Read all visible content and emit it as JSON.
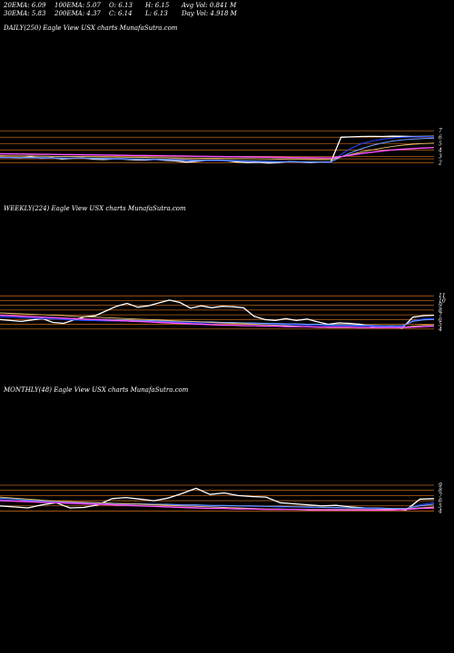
{
  "stats": [
    {
      "label": "20EMA: 6.09"
    },
    {
      "label": "100EMA: 5.07"
    },
    {
      "label": "O: 6.13"
    },
    {
      "label": "H: 6.15"
    },
    {
      "label": "Avg Vol: 0.841  M"
    },
    {
      "label": "30EMA: 5.83"
    },
    {
      "label": "200EMA: 4.37"
    },
    {
      "label": "C: 6.14"
    },
    {
      "label": "L: 6.13"
    },
    {
      "label": "Day Vol: 4.918  M"
    }
  ],
  "panels": [
    {
      "label": "DAILY(250) Eagle   View  USX  charts MunafaSutra.com",
      "ticks": [
        "7",
        "6",
        "5",
        "4",
        "3",
        "2"
      ]
    },
    {
      "label": "WEEKLY(224) Eagle   View  USX  charts MunafaSutra.com",
      "ticks": [
        "11",
        "10",
        "9",
        "8",
        "7",
        "6",
        "5",
        "4"
      ]
    },
    {
      "label": "MONTHLY(48) Eagle   View  USX  charts MunafaSutra.com",
      "ticks": [
        "9",
        "8",
        "7",
        "6",
        "5",
        "4"
      ]
    }
  ],
  "colors": {
    "background": "#000000",
    "price": "#ffffff",
    "ema20": "#2244ff",
    "ema30": "#6fa0ff",
    "ema100": "#e8c070",
    "ema200": "#ff55ff",
    "level_lines": "#b8621a"
  },
  "chart_data": [
    {
      "type": "line",
      "title": "DAILY(250) Eagle   View  USX  charts MunafaSutra.com",
      "ylim": [
        1.2,
        7.6
      ],
      "y_ticks": [
        7,
        6,
        5,
        4,
        3,
        2
      ],
      "series": [
        {
          "name": "price",
          "values": [
            2.85,
            2.8,
            2.75,
            2.9,
            2.7,
            2.8,
            2.6,
            2.7,
            2.75,
            2.55,
            2.5,
            2.6,
            2.55,
            2.45,
            2.4,
            2.5,
            2.35,
            2.3,
            2.1,
            2.2,
            2.35,
            2.4,
            2.3,
            2.1,
            2.0,
            2.05,
            1.95,
            2.0,
            2.2,
            2.1,
            2.0,
            2.1,
            2.05,
            6.0,
            6.05,
            6.1,
            6.12,
            6.1,
            6.15,
            6.13,
            6.1,
            6.12,
            6.14
          ]
        },
        {
          "name": "ema20",
          "values": [
            2.8,
            2.78,
            2.76,
            2.78,
            2.74,
            2.74,
            2.7,
            2.7,
            2.7,
            2.66,
            2.62,
            2.6,
            2.58,
            2.54,
            2.5,
            2.5,
            2.46,
            2.42,
            2.36,
            2.32,
            2.32,
            2.32,
            2.3,
            2.26,
            2.2,
            2.17,
            2.13,
            2.1,
            2.12,
            2.1,
            2.08,
            2.08,
            2.07,
            3.3,
            4.3,
            5.0,
            5.4,
            5.7,
            5.9,
            6.0,
            6.05,
            6.08,
            6.09
          ]
        },
        {
          "name": "ema30",
          "values": [
            2.85,
            2.83,
            2.81,
            2.82,
            2.79,
            2.78,
            2.75,
            2.74,
            2.74,
            2.71,
            2.68,
            2.66,
            2.64,
            2.6,
            2.57,
            2.56,
            2.53,
            2.49,
            2.44,
            2.41,
            2.4,
            2.39,
            2.37,
            2.33,
            2.28,
            2.25,
            2.21,
            2.18,
            2.18,
            2.16,
            2.14,
            2.13,
            2.12,
            2.9,
            3.6,
            4.2,
            4.7,
            5.1,
            5.4,
            5.6,
            5.7,
            5.78,
            5.83
          ]
        },
        {
          "name": "ema100",
          "values": [
            3.1,
            3.08,
            3.06,
            3.05,
            3.03,
            3.01,
            2.99,
            2.97,
            2.95,
            2.93,
            2.91,
            2.89,
            2.87,
            2.85,
            2.83,
            2.81,
            2.79,
            2.77,
            2.74,
            2.72,
            2.7,
            2.69,
            2.67,
            2.65,
            2.62,
            2.6,
            2.58,
            2.55,
            2.54,
            2.52,
            2.5,
            2.48,
            2.46,
            2.9,
            3.3,
            3.7,
            4.0,
            4.3,
            4.55,
            4.75,
            4.9,
            5.0,
            5.07
          ]
        },
        {
          "name": "ema200",
          "values": [
            3.4,
            3.38,
            3.36,
            3.34,
            3.32,
            3.3,
            3.28,
            3.26,
            3.24,
            3.22,
            3.2,
            3.18,
            3.16,
            3.14,
            3.12,
            3.1,
            3.08,
            3.06,
            3.03,
            3.01,
            2.99,
            2.97,
            2.95,
            2.93,
            2.9,
            2.88,
            2.86,
            2.83,
            2.81,
            2.79,
            2.77,
            2.75,
            2.73,
            2.95,
            3.2,
            3.45,
            3.65,
            3.85,
            4.0,
            4.12,
            4.22,
            4.3,
            4.37
          ]
        }
      ],
      "levels": [
        7.0,
        6.0,
        5.0,
        4.0,
        3.0,
        2.6,
        2.0
      ]
    },
    {
      "type": "line",
      "title": "WEEKLY(224) Eagle   View  USX  charts MunafaSutra.com",
      "ylim": [
        3.0,
        11.8
      ],
      "y_ticks": [
        11,
        10,
        9,
        8,
        7,
        6,
        5,
        4
      ],
      "series": [
        {
          "name": "price",
          "values": [
            6.0,
            5.8,
            5.6,
            5.9,
            6.2,
            5.4,
            5.2,
            5.9,
            6.6,
            6.8,
            7.8,
            8.8,
            9.4,
            8.6,
            8.9,
            9.5,
            10.1,
            9.6,
            8.4,
            8.9,
            8.5,
            8.8,
            8.7,
            8.5,
            6.7,
            6.0,
            5.8,
            6.2,
            5.8,
            6.1,
            5.5,
            5.0,
            5.3,
            5.2,
            5.0,
            4.6,
            4.3,
            4.5,
            4.2,
            6.5,
            6.8,
            6.9
          ]
        },
        {
          "name": "ema20",
          "values": [
            6.6,
            6.5,
            6.4,
            6.3,
            6.2,
            6.1,
            6.0,
            5.9,
            5.8,
            5.8,
            5.7,
            5.7,
            5.7,
            5.6,
            5.6,
            5.5,
            5.5,
            5.4,
            5.4,
            5.3,
            5.3,
            5.2,
            5.2,
            5.1,
            5.1,
            5.0,
            5.0,
            4.9,
            4.9,
            4.8,
            4.8,
            4.7,
            4.7,
            4.7,
            4.6,
            4.6,
            4.5,
            4.5,
            4.5,
            5.8,
            6.1,
            6.2
          ]
        },
        {
          "name": "ema30",
          "values": [
            6.9,
            6.8,
            6.7,
            6.6,
            6.5,
            6.4,
            6.3,
            6.2,
            6.1,
            6.0,
            6.0,
            5.9,
            5.9,
            5.8,
            5.8,
            5.7,
            5.7,
            5.6,
            5.6,
            5.5,
            5.5,
            5.4,
            5.4,
            5.3,
            5.3,
            5.2,
            5.2,
            5.1,
            5.1,
            5.0,
            5.0,
            4.9,
            4.9,
            4.9,
            4.8,
            4.8,
            4.7,
            4.7,
            4.7,
            5.6,
            5.9,
            6.0
          ]
        },
        {
          "name": "ema100",
          "values": [
            7.4,
            7.3,
            7.2,
            7.1,
            7.0,
            6.9,
            6.8,
            6.7,
            6.6,
            6.5,
            6.4,
            6.3,
            6.2,
            6.1,
            6.0,
            5.9,
            5.8,
            5.7,
            5.6,
            5.5,
            5.4,
            5.3,
            5.2,
            5.1,
            5.0,
            4.9,
            4.8,
            4.7,
            4.6,
            4.5,
            4.4,
            4.3,
            4.3,
            4.3,
            4.3,
            4.3,
            4.3,
            4.3,
            4.3,
            4.6,
            4.8,
            4.9
          ]
        },
        {
          "name": "ema200",
          "values": [
            6.9,
            6.8,
            6.7,
            6.6,
            6.5,
            6.4,
            6.3,
            6.2,
            6.1,
            6.0,
            5.9,
            5.8,
            5.7,
            5.6,
            5.5,
            5.4,
            5.3,
            5.2,
            5.1,
            5.0,
            4.9,
            4.8,
            4.8,
            4.7,
            4.7,
            4.6,
            4.6,
            4.5,
            4.5,
            4.5,
            4.4,
            4.4,
            4.4,
            4.4,
            4.3,
            4.3,
            4.3,
            4.3,
            4.3,
            4.4,
            4.5,
            4.6
          ]
        }
      ],
      "levels": [
        11.0,
        10.0,
        9.0,
        8.0,
        7.0,
        6.0,
        5.0,
        4.0
      ]
    },
    {
      "type": "line",
      "title": "MONTHLY(48) Eagle   View  USX  charts MunafaSutra.com",
      "ylim": [
        3.2,
        10.4
      ],
      "y_ticks": [
        9,
        8,
        7,
        6,
        5,
        4
      ],
      "series": [
        {
          "name": "price",
          "values": [
            5.0,
            4.8,
            4.6,
            5.2,
            5.6,
            4.6,
            4.7,
            5.2,
            6.4,
            6.6,
            6.3,
            6.0,
            6.5,
            7.4,
            8.4,
            7.2,
            7.5,
            7.0,
            6.8,
            6.7,
            5.6,
            5.4,
            5.2,
            5.0,
            5.1,
            4.8,
            4.6,
            4.5,
            4.4,
            4.2,
            6.3,
            6.4
          ]
        },
        {
          "name": "ema20",
          "values": [
            6.2,
            6.0,
            5.9,
            5.8,
            5.7,
            5.6,
            5.5,
            5.4,
            5.4,
            5.3,
            5.3,
            5.2,
            5.2,
            5.1,
            5.1,
            5.0,
            5.0,
            5.0,
            4.9,
            4.9,
            4.8,
            4.8,
            4.7,
            4.7,
            4.6,
            4.6,
            4.5,
            4.5,
            4.5,
            4.5,
            5.2,
            5.6
          ]
        },
        {
          "name": "ema30",
          "values": [
            6.5,
            6.3,
            6.1,
            6.0,
            5.9,
            5.8,
            5.7,
            5.6,
            5.5,
            5.4,
            5.4,
            5.3,
            5.3,
            5.2,
            5.2,
            5.1,
            5.1,
            5.0,
            5.0,
            4.9,
            4.9,
            4.8,
            4.8,
            4.7,
            4.7,
            4.6,
            4.6,
            4.6,
            4.5,
            4.5,
            5.0,
            5.3
          ]
        },
        {
          "name": "ema100",
          "values": [
            6.7,
            6.5,
            6.3,
            6.1,
            5.9,
            5.8,
            5.7,
            5.6,
            5.5,
            5.4,
            5.3,
            5.2,
            5.1,
            5.0,
            4.9,
            4.8,
            4.7,
            4.6,
            4.5,
            4.4,
            4.4,
            4.3,
            4.3,
            4.3,
            4.3,
            4.3,
            4.3,
            4.3,
            4.3,
            4.4,
            4.6,
            4.8
          ]
        },
        {
          "name": "ema200",
          "values": [
            6.0,
            5.9,
            5.8,
            5.7,
            5.6,
            5.5,
            5.4,
            5.3,
            5.2,
            5.1,
            5.0,
            4.9,
            4.8,
            4.7,
            4.6,
            4.5,
            4.5,
            4.4,
            4.4,
            4.3,
            4.3,
            4.3,
            4.2,
            4.2,
            4.2,
            4.2,
            4.2,
            4.2,
            4.2,
            4.3,
            4.5,
            4.6
          ]
        }
      ],
      "levels": [
        9.0,
        8.0,
        7.0,
        6.0,
        5.0,
        4.0
      ]
    }
  ]
}
